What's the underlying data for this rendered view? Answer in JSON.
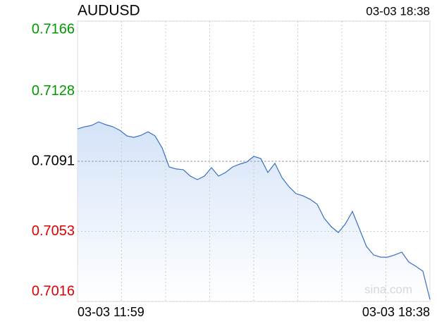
{
  "chart_data": {
    "type": "line",
    "title": "AUDUSD",
    "timestamp": "03-03 18:38",
    "x_labels": [
      "03-03 11:59",
      "03-03 18:38"
    ],
    "watermark": "sina.com",
    "values": [
      0.71083,
      0.71095,
      0.71102,
      0.71121,
      0.71106,
      0.71095,
      0.71076,
      0.71046,
      0.71038,
      0.71049,
      0.71068,
      0.71046,
      0.70982,
      0.7088,
      0.70869,
      0.70865,
      0.70831,
      0.70812,
      0.70831,
      0.70876,
      0.70831,
      0.7085,
      0.7088,
      0.70895,
      0.70906,
      0.70936,
      0.70925,
      0.7085,
      0.70899,
      0.70823,
      0.70774,
      0.70737,
      0.70725,
      0.70707,
      0.7068,
      0.70605,
      0.7056,
      0.70529,
      0.70575,
      0.70642,
      0.70548,
      0.70454,
      0.70409,
      0.70397,
      0.70397,
      0.70409,
      0.70424,
      0.70371,
      0.70348,
      0.70322,
      0.70171
    ],
    "color": "#3a6fc4",
    "ylim": [
      0.7016,
      0.7166
    ],
    "yticks": [
      0.7016,
      {
        "value": 0.70535,
        "label": "0.7053"
      },
      0.7091,
      {
        "value": 0.71285,
        "label": "0.7128"
      },
      0.7166
    ],
    "reference_value": 0.7091,
    "up_color": "#009900",
    "down_color": "#e00000",
    "flat_color": "#000000",
    "x_grid_divisions": 8,
    "grid": true
  }
}
